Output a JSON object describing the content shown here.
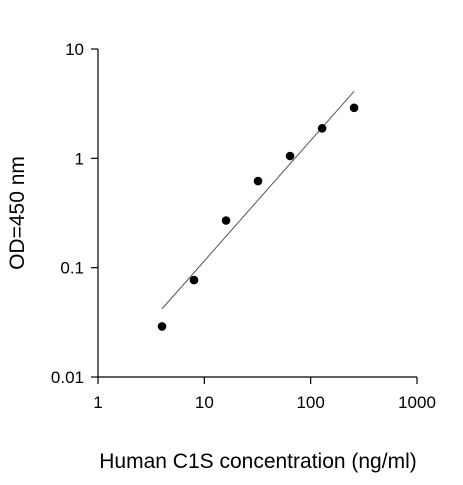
{
  "chart_data": {
    "type": "scatter",
    "title": "",
    "xlabel": "Human C1S concentration (ng/ml)",
    "ylabel": "OD=450 nm",
    "x_scale": "log",
    "y_scale": "log",
    "xlim": [
      1,
      1000
    ],
    "ylim": [
      0.01,
      10
    ],
    "x_ticks": [
      1,
      10,
      100,
      1000
    ],
    "x_tick_labels": [
      "1",
      "10",
      "100",
      "1000"
    ],
    "y_ticks": [
      0.01,
      0.1,
      1,
      10
    ],
    "y_tick_labels": [
      "0.01",
      "0.1",
      "1",
      "10"
    ],
    "grid": false,
    "legend": "none",
    "series": [
      {
        "x": [
          4,
          8,
          16,
          32,
          64,
          128,
          256
        ],
        "y": [
          0.029,
          0.077,
          0.27,
          0.62,
          1.05,
          1.88,
          2.9
        ]
      }
    ],
    "fit_line": {
      "x": [
        4,
        256
      ],
      "y": [
        0.042,
        4.1
      ]
    },
    "colors": {
      "marker": "#000000",
      "axis": "#000000",
      "fit_line": "#555555"
    }
  }
}
